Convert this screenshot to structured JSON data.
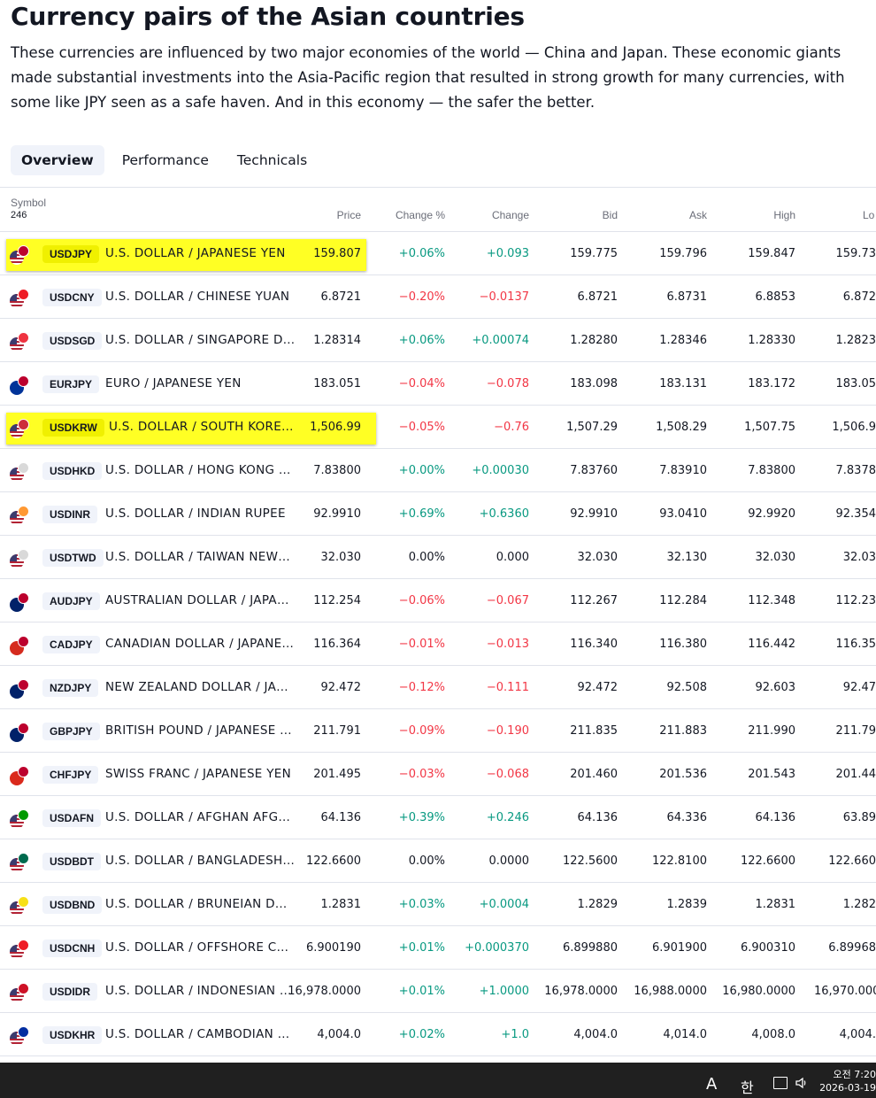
{
  "page": {
    "title": "Currency pairs of the Asian countries",
    "description": "These currencies are influenced by two major economies of the world — China and Japan. These economic giants made substantial investments into the Asia-Pacific region that resulted in strong growth for many currencies, with some like JPY seen as a safe haven. And in this economy — the safer the better."
  },
  "tabs": [
    {
      "label": "Overview",
      "active": true
    },
    {
      "label": "Performance",
      "active": false
    },
    {
      "label": "Technicals",
      "active": false
    }
  ],
  "table": {
    "headers": {
      "symbol": "Symbol",
      "count": "246",
      "price": "Price",
      "change_pct": "Change %",
      "change": "Change",
      "bid": "Bid",
      "ask": "Ask",
      "high": "High",
      "low": "Lo"
    },
    "rows": [
      {
        "ticker": "USDJPY",
        "name": "U.S. DOLLAR / JAPANESE YEN",
        "price": "159.807",
        "change_pct": "+0.06%",
        "change": "+0.093",
        "bid": "159.775",
        "ask": "159.796",
        "high": "159.847",
        "low": "159.73",
        "trend": "pos",
        "highlighted": true,
        "flag": [
          "#3c3b6e",
          "#bc002d"
        ]
      },
      {
        "ticker": "USDCNY",
        "name": "U.S. DOLLAR / CHINESE YUAN",
        "price": "6.8721",
        "change_pct": "−0.20%",
        "change": "−0.0137",
        "bid": "6.8721",
        "ask": "6.8731",
        "high": "6.8853",
        "low": "6.872",
        "trend": "neg",
        "highlighted": false,
        "flag": [
          "#3c3b6e",
          "#ee1c25"
        ]
      },
      {
        "ticker": "USDSGD",
        "name": "U.S. DOLLAR / SINGAPORE D…",
        "price": "1.28314",
        "change_pct": "+0.06%",
        "change": "+0.00074",
        "bid": "1.28280",
        "ask": "1.28346",
        "high": "1.28330",
        "low": "1.2823",
        "trend": "pos",
        "highlighted": false,
        "flag": [
          "#3c3b6e",
          "#ef3340"
        ]
      },
      {
        "ticker": "EURJPY",
        "name": "EURO / JAPANESE YEN",
        "price": "183.051",
        "change_pct": "−0.04%",
        "change": "−0.078",
        "bid": "183.098",
        "ask": "183.131",
        "high": "183.172",
        "low": "183.05",
        "trend": "neg",
        "highlighted": false,
        "flag": [
          "#003399",
          "#bc002d"
        ]
      },
      {
        "ticker": "USDKRW",
        "name": "U.S. DOLLAR / SOUTH KORE…",
        "price": "1,506.99",
        "change_pct": "−0.05%",
        "change": "−0.76",
        "bid": "1,507.29",
        "ask": "1,508.29",
        "high": "1,507.75",
        "low": "1,506.9",
        "trend": "neg",
        "highlighted": true,
        "flag": [
          "#3c3b6e",
          "#cd2e3a"
        ]
      },
      {
        "ticker": "USDHKD",
        "name": "U.S. DOLLAR / HONG KONG …",
        "price": "7.83800",
        "change_pct": "+0.00%",
        "change": "+0.00030",
        "bid": "7.83760",
        "ask": "7.83910",
        "high": "7.83800",
        "low": "7.8378",
        "trend": "pos",
        "highlighted": false,
        "flag": [
          "#3c3b6e",
          "#d9d9d9"
        ]
      },
      {
        "ticker": "USDINR",
        "name": "U.S. DOLLAR / INDIAN RUPEE",
        "price": "92.9910",
        "change_pct": "+0.69%",
        "change": "+0.6360",
        "bid": "92.9910",
        "ask": "93.0410",
        "high": "92.9920",
        "low": "92.354",
        "trend": "pos",
        "highlighted": false,
        "flag": [
          "#3c3b6e",
          "#ff9933"
        ]
      },
      {
        "ticker": "USDTWD",
        "name": "U.S. DOLLAR / TAIWAN NEW…",
        "price": "32.030",
        "change_pct": "0.00%",
        "change": "0.000",
        "bid": "32.030",
        "ask": "32.130",
        "high": "32.030",
        "low": "32.03",
        "trend": "flat",
        "highlighted": false,
        "flag": [
          "#3c3b6e",
          "#d9d9d9"
        ]
      },
      {
        "ticker": "AUDJPY",
        "name": "AUSTRALIAN DOLLAR / JAPA…",
        "price": "112.254",
        "change_pct": "−0.06%",
        "change": "−0.067",
        "bid": "112.267",
        "ask": "112.284",
        "high": "112.348",
        "low": "112.23",
        "trend": "neg",
        "highlighted": false,
        "flag": [
          "#012169",
          "#bc002d"
        ]
      },
      {
        "ticker": "CADJPY",
        "name": "CANADIAN DOLLAR / JAPANE…",
        "price": "116.364",
        "change_pct": "−0.01%",
        "change": "−0.013",
        "bid": "116.340",
        "ask": "116.380",
        "high": "116.442",
        "low": "116.35",
        "trend": "neg",
        "highlighted": false,
        "flag": [
          "#d52b1e",
          "#bc002d"
        ]
      },
      {
        "ticker": "NZDJPY",
        "name": "NEW ZEALAND DOLLAR / JA…",
        "price": "92.472",
        "change_pct": "−0.12%",
        "change": "−0.111",
        "bid": "92.472",
        "ask": "92.508",
        "high": "92.603",
        "low": "92.47",
        "trend": "neg",
        "highlighted": false,
        "flag": [
          "#012169",
          "#bc002d"
        ]
      },
      {
        "ticker": "GBPJPY",
        "name": "BRITISH POUND / JAPANESE …",
        "price": "211.791",
        "change_pct": "−0.09%",
        "change": "−0.190",
        "bid": "211.835",
        "ask": "211.883",
        "high": "211.990",
        "low": "211.79",
        "trend": "neg",
        "highlighted": false,
        "flag": [
          "#012169",
          "#bc002d"
        ]
      },
      {
        "ticker": "CHFJPY",
        "name": "SWISS FRANC / JAPANESE YEN",
        "price": "201.495",
        "change_pct": "−0.03%",
        "change": "−0.068",
        "bid": "201.460",
        "ask": "201.536",
        "high": "201.543",
        "low": "201.44",
        "trend": "neg",
        "highlighted": false,
        "flag": [
          "#da291c",
          "#bc002d"
        ]
      },
      {
        "ticker": "USDAFN",
        "name": "U.S. DOLLAR / AFGHAN AFG…",
        "price": "64.136",
        "change_pct": "+0.39%",
        "change": "+0.246",
        "bid": "64.136",
        "ask": "64.336",
        "high": "64.136",
        "low": "63.89",
        "trend": "pos",
        "highlighted": false,
        "flag": [
          "#3c3b6e",
          "#009900"
        ]
      },
      {
        "ticker": "USDBDT",
        "name": "U.S. DOLLAR / BANGLADESH…",
        "price": "122.6600",
        "change_pct": "0.00%",
        "change": "0.0000",
        "bid": "122.5600",
        "ask": "122.8100",
        "high": "122.6600",
        "low": "122.660",
        "trend": "flat",
        "highlighted": false,
        "flag": [
          "#3c3b6e",
          "#006a4e"
        ]
      },
      {
        "ticker": "USDBND",
        "name": "U.S. DOLLAR / BRUNEIAN D…",
        "price": "1.2831",
        "change_pct": "+0.03%",
        "change": "+0.0004",
        "bid": "1.2829",
        "ask": "1.2839",
        "high": "1.2831",
        "low": "1.282",
        "trend": "pos",
        "highlighted": false,
        "flag": [
          "#3c3b6e",
          "#f7e017"
        ]
      },
      {
        "ticker": "USDCNH",
        "name": "U.S. DOLLAR / OFFSHORE C…",
        "price": "6.900190",
        "change_pct": "+0.01%",
        "change": "+0.000370",
        "bid": "6.899880",
        "ask": "6.901900",
        "high": "6.900310",
        "low": "6.89968",
        "trend": "pos",
        "highlighted": false,
        "flag": [
          "#3c3b6e",
          "#ee1c25"
        ]
      },
      {
        "ticker": "USDIDR",
        "name": "U.S. DOLLAR / INDONESIAN …",
        "price": "16,978.0000",
        "change_pct": "+0.01%",
        "change": "+1.0000",
        "bid": "16,978.0000",
        "ask": "16,988.0000",
        "high": "16,980.0000",
        "low": "16,970.000",
        "trend": "pos",
        "highlighted": false,
        "flag": [
          "#3c3b6e",
          "#ce1126"
        ]
      },
      {
        "ticker": "USDKHR",
        "name": "U.S. DOLLAR / CAMBODIAN …",
        "price": "4,004.0",
        "change_pct": "+0.02%",
        "change": "+1.0",
        "bid": "4,004.0",
        "ask": "4,014.0",
        "high": "4,008.0",
        "low": "4,004.",
        "trend": "pos",
        "highlighted": false,
        "flag": [
          "#3c3b6e",
          "#032ea1"
        ]
      }
    ]
  },
  "taskbar": {
    "ime_label": "A",
    "lang_label": "한",
    "time": "오전 7:20",
    "date": "2026-03-19"
  },
  "colors": {
    "positive": "#089981",
    "negative": "#f23645",
    "highlight": "#ffff24"
  }
}
